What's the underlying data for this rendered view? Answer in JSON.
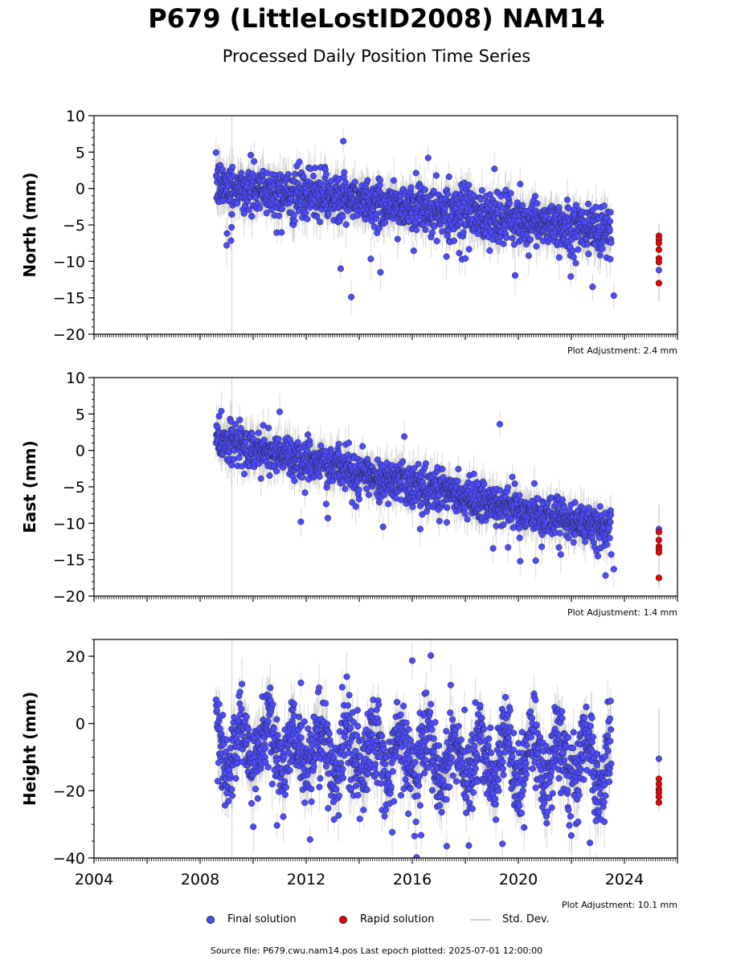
{
  "header": {
    "title": "P679 (LittleLostID2008) NAM14",
    "subtitle": "Processed Daily Position Time Series"
  },
  "footer": {
    "source_text": "Source file: P679.cwu.nam14.pos  Last epoch plotted: 2025-07-01 12:00:00"
  },
  "legend": {
    "final_label": "Final solution",
    "rapid_label": "Rapid solution",
    "std_label": "Std. Dev."
  },
  "colors": {
    "final": "#4b4bff",
    "rapid": "#ee0000",
    "std": "#bbbbbb"
  },
  "chart_data": [
    {
      "type": "scatter",
      "panel": "north",
      "ylabel": "North (mm)",
      "ylim": [
        -20,
        10
      ],
      "yticks": [
        10,
        5,
        0,
        -5,
        -10,
        -15,
        -20
      ],
      "ytick_labels": [
        "10",
        "5",
        "0",
        "−5",
        "−10",
        "−15",
        "−20"
      ],
      "xlim": [
        2004,
        2026
      ],
      "adjustment": "Plot Adjustment: 2.4 mm",
      "trend": {
        "start": [
          2008.6,
          0.5
        ],
        "end": [
          2023.5,
          -5.8
        ],
        "scatter_sd": 1.6,
        "std_dev": 2.0
      },
      "rapid": {
        "x": 2025.3,
        "values": [
          -6.5,
          -7.0,
          -7.5,
          -8.4,
          -9.6,
          -10.1,
          -13.0
        ],
        "final_extra": [
          -11.2
        ],
        "std_range": [
          -15.5,
          -4.8
        ]
      },
      "outliers": [
        [
          2013.4,
          6.5
        ],
        [
          2013.3,
          -11.0
        ],
        [
          2013.7,
          -14.9
        ],
        [
          2014.8,
          -11.5
        ],
        [
          2016.6,
          4.2
        ],
        [
          2019.1,
          2.7
        ],
        [
          2022.8,
          -13.5
        ],
        [
          2023.6,
          -14.7
        ],
        [
          2009.0,
          -7.8
        ],
        [
          2018.0,
          -9.6
        ]
      ]
    },
    {
      "type": "scatter",
      "panel": "east",
      "ylabel": "East (mm)",
      "ylim": [
        -20,
        10
      ],
      "yticks": [
        10,
        5,
        0,
        -5,
        -10,
        -15,
        -20
      ],
      "ytick_labels": [
        "10",
        "5",
        "0",
        "−5",
        "−10",
        "−15",
        "−20"
      ],
      "xlim": [
        2004,
        2026
      ],
      "adjustment": "Plot Adjustment: 1.4 mm",
      "trend": {
        "start": [
          2008.6,
          1.5
        ],
        "end": [
          2023.5,
          -11.0
        ],
        "scatter_sd": 1.3,
        "std_dev": 1.8
      },
      "rapid": {
        "x": 2025.3,
        "values": [
          -11.2,
          -12.3,
          -13.2,
          -13.6,
          -14.0,
          -17.5
        ],
        "final_extra": [
          -10.8
        ],
        "std_range": [
          -19.0,
          -7.5
        ]
      },
      "outliers": [
        [
          2008.8,
          5.4
        ],
        [
          2011.0,
          5.3
        ],
        [
          2019.3,
          3.6
        ],
        [
          2014.9,
          -10.5
        ],
        [
          2015.7,
          1.9
        ],
        [
          2021.6,
          -14.3
        ],
        [
          2023.6,
          -16.3
        ],
        [
          2011.8,
          -9.8
        ],
        [
          2016.3,
          -10.8
        ]
      ]
    },
    {
      "type": "scatter",
      "panel": "height",
      "ylabel": "Height (mm)",
      "ylim": [
        -40,
        25
      ],
      "yticks": [
        20,
        0,
        -20,
        -40
      ],
      "ytick_labels": [
        "20",
        "0",
        "−20",
        "−40"
      ],
      "xlim": [
        2004,
        2026
      ],
      "xticks": [
        2004,
        2008,
        2012,
        2016,
        2020,
        2024
      ],
      "xtick_labels": [
        "2004",
        "2008",
        "2012",
        "2016",
        "2020",
        "2024"
      ],
      "adjustment": "Plot Adjustment: 10.1 mm",
      "trend": {
        "start": [
          2008.6,
          -7.0
        ],
        "end": [
          2023.5,
          -12.0
        ],
        "scatter_sd": 6.0,
        "seasonal_amp": 7.0,
        "std_dev": 5.0
      },
      "rapid": {
        "x": 2025.3,
        "values": [
          -16.5,
          -18.0,
          -19.5,
          -20.5,
          -21.8,
          -23.5
        ],
        "final_extra": [
          -10.5
        ],
        "std_range": [
          -26.0,
          4.5
        ]
      },
      "outliers": [
        [
          2016.7,
          20.2
        ],
        [
          2016.0,
          18.7
        ],
        [
          2011.8,
          12.1
        ],
        [
          2017.3,
          -36.5
        ],
        [
          2019.4,
          -35.8
        ],
        [
          2022.7,
          -35.5
        ],
        [
          2010.9,
          -30.3
        ]
      ]
    }
  ]
}
